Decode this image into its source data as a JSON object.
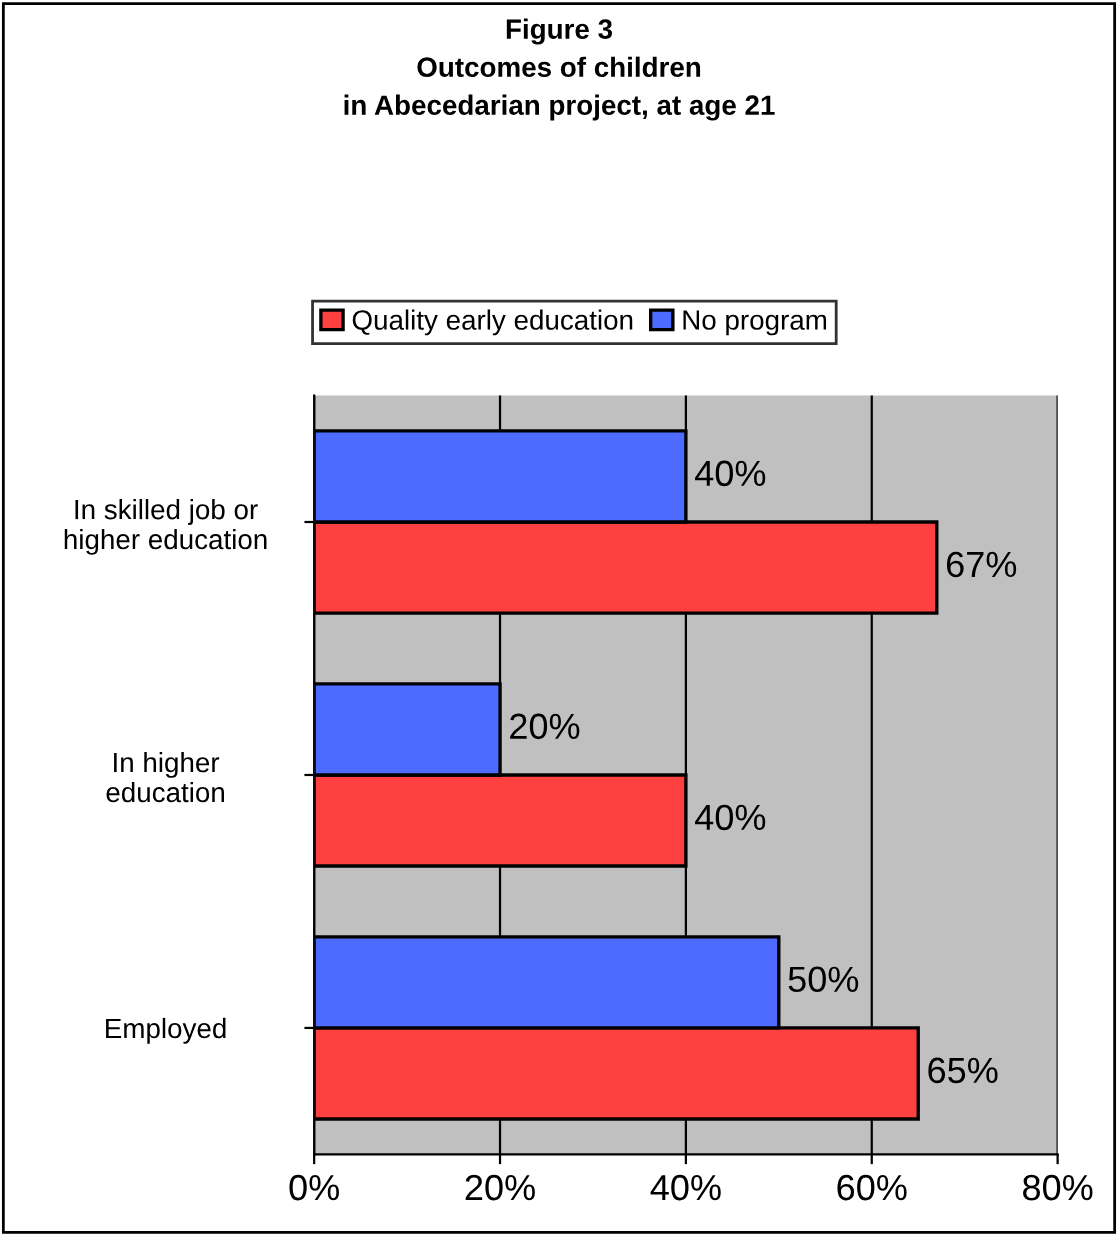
{
  "chart_data": {
    "type": "bar",
    "orientation": "horizontal",
    "title": "Figure 3\nOutcomes of children\nin Abecedarian project, at age 21",
    "categories": [
      "In skilled job or\nhigher education",
      "In higher\neducation",
      "Employed"
    ],
    "series": [
      {
        "name": "Quality early education",
        "color": "#ff4040",
        "values": [
          67,
          40,
          65
        ],
        "value_labels": [
          "67%",
          "40%",
          "65%"
        ]
      },
      {
        "name": "No program",
        "color": "#4d6bff",
        "values": [
          40,
          20,
          50
        ],
        "value_labels": [
          "40%",
          "20%",
          "50%"
        ]
      }
    ],
    "xlim": [
      0,
      80
    ],
    "xticks": [
      {
        "value": 0,
        "label": "0%"
      },
      {
        "value": 20,
        "label": "20%"
      },
      {
        "value": 40,
        "label": "40%"
      },
      {
        "value": 60,
        "label": "60%"
      },
      {
        "value": 80,
        "label": "80%"
      }
    ],
    "grid": "x",
    "legend": "top"
  }
}
